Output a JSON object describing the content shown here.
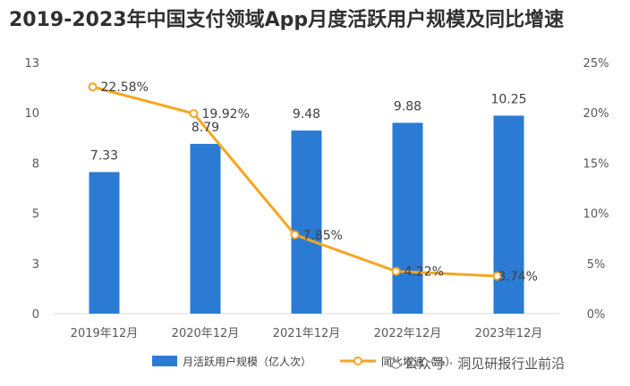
{
  "title": "2019-2023年中国支付领域App月度活跃用户规模及同比增速",
  "chart_data": {
    "type": "bar+line",
    "categories": [
      "2019年12月",
      "2020年12月",
      "2021年12月",
      "2022年12月",
      "2023年12月"
    ],
    "series": [
      {
        "name": "月活跃用户规模（亿人次）",
        "type": "bar",
        "axis": "left",
        "values": [
          7.33,
          8.79,
          9.48,
          9.88,
          10.25
        ],
        "labels": [
          "7.33",
          "8.79",
          "9.48",
          "9.88",
          "10.25"
        ],
        "color": "#2b7bd4"
      },
      {
        "name": "同比增速（%）",
        "type": "line",
        "axis": "right",
        "values": [
          22.58,
          19.92,
          7.85,
          4.22,
          3.74
        ],
        "labels": [
          "22.58%",
          "19.92%",
          "7.85%",
          "4.22%",
          "3.74%"
        ],
        "color": "#f5a623"
      }
    ],
    "left_axis": {
      "ylim": [
        0,
        13
      ],
      "ticks": [
        0,
        2.6,
        5.2,
        7.8,
        10.4,
        13
      ],
      "tick_labels": [
        "0",
        "3",
        "5",
        "8",
        "10",
        "13"
      ]
    },
    "right_axis": {
      "ylim": [
        0,
        25
      ],
      "ticks": [
        0,
        5,
        10,
        15,
        20,
        25
      ],
      "tick_labels": [
        "0%",
        "5%",
        "10%",
        "15%",
        "20%",
        "25%"
      ]
    },
    "legend_position": "bottom",
    "grid": false
  },
  "watermark": "公众号 · 洞见研报行业前沿"
}
